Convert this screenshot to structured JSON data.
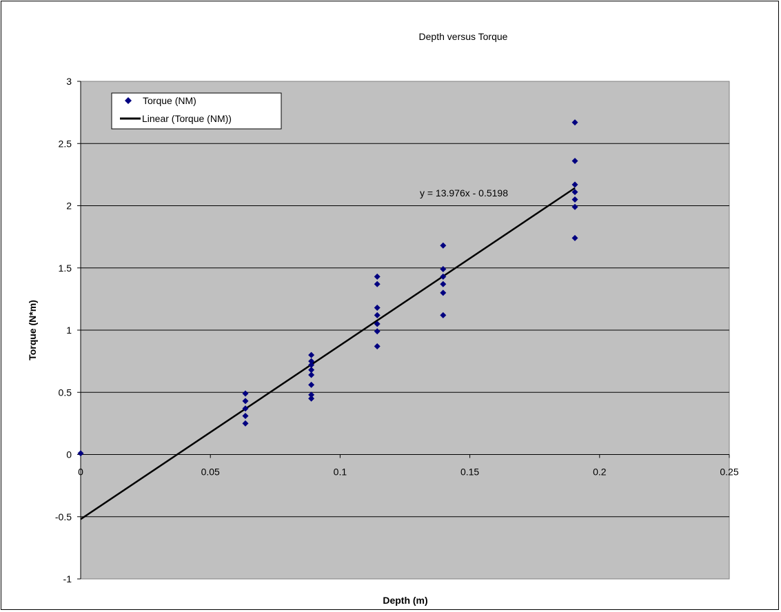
{
  "chart_data": {
    "type": "scatter",
    "title": "Depth versus Torque",
    "xlabel": "Depth (m)",
    "ylabel": "Torque (N*m)",
    "xlim": [
      0,
      0.25
    ],
    "ylim": [
      -1,
      3
    ],
    "xticks": [
      0,
      0.05,
      0.1,
      0.15,
      0.2,
      0.25
    ],
    "xtick_labels": [
      "0",
      "0.05",
      "0.1",
      "0.15",
      "0.2",
      "0.25"
    ],
    "yticks": [
      -1,
      -0.5,
      0,
      0.5,
      1,
      1.5,
      2,
      2.5,
      3
    ],
    "ytick_labels": [
      "-1",
      "-0.5",
      "0",
      "0.5",
      "1",
      "1.5",
      "2",
      "2.5",
      "3"
    ],
    "grid": {
      "horizontal": true,
      "vertical": false
    },
    "legend_position": "top-left",
    "colors": {
      "plot_area": "#c0c0c0",
      "marker": "#000080",
      "trendline": "#000000",
      "gridline": "#000000"
    },
    "series": [
      {
        "name": "Torque (NM)",
        "marker": "diamond",
        "points": [
          [
            0,
            0.01
          ],
          [
            0.0635,
            0.25
          ],
          [
            0.0635,
            0.31
          ],
          [
            0.0635,
            0.37
          ],
          [
            0.0635,
            0.43
          ],
          [
            0.0635,
            0.49
          ],
          [
            0.0889,
            0.45
          ],
          [
            0.0889,
            0.48
          ],
          [
            0.0889,
            0.56
          ],
          [
            0.0889,
            0.64
          ],
          [
            0.0889,
            0.68
          ],
          [
            0.0889,
            0.72
          ],
          [
            0.0889,
            0.75
          ],
          [
            0.0889,
            0.8
          ],
          [
            0.1143,
            0.87
          ],
          [
            0.1143,
            0.99
          ],
          [
            0.1143,
            1.05
          ],
          [
            0.1143,
            1.12
          ],
          [
            0.1143,
            1.18
          ],
          [
            0.1143,
            1.37
          ],
          [
            0.1143,
            1.43
          ],
          [
            0.1397,
            1.12
          ],
          [
            0.1397,
            1.3
          ],
          [
            0.1397,
            1.37
          ],
          [
            0.1397,
            1.43
          ],
          [
            0.1397,
            1.49
          ],
          [
            0.1397,
            1.68
          ],
          [
            0.1905,
            1.74
          ],
          [
            0.1905,
            1.99
          ],
          [
            0.1905,
            2.05
          ],
          [
            0.1905,
            2.11
          ],
          [
            0.1905,
            2.17
          ],
          [
            0.1905,
            2.36
          ],
          [
            0.1905,
            2.67
          ]
        ]
      }
    ],
    "trendline": {
      "name": "Linear (Torque (NM))",
      "slope": 13.976,
      "intercept": -0.5198,
      "x_range": [
        0,
        0.1905
      ],
      "equation_label": "y = 13.976x - 0.5198"
    }
  }
}
